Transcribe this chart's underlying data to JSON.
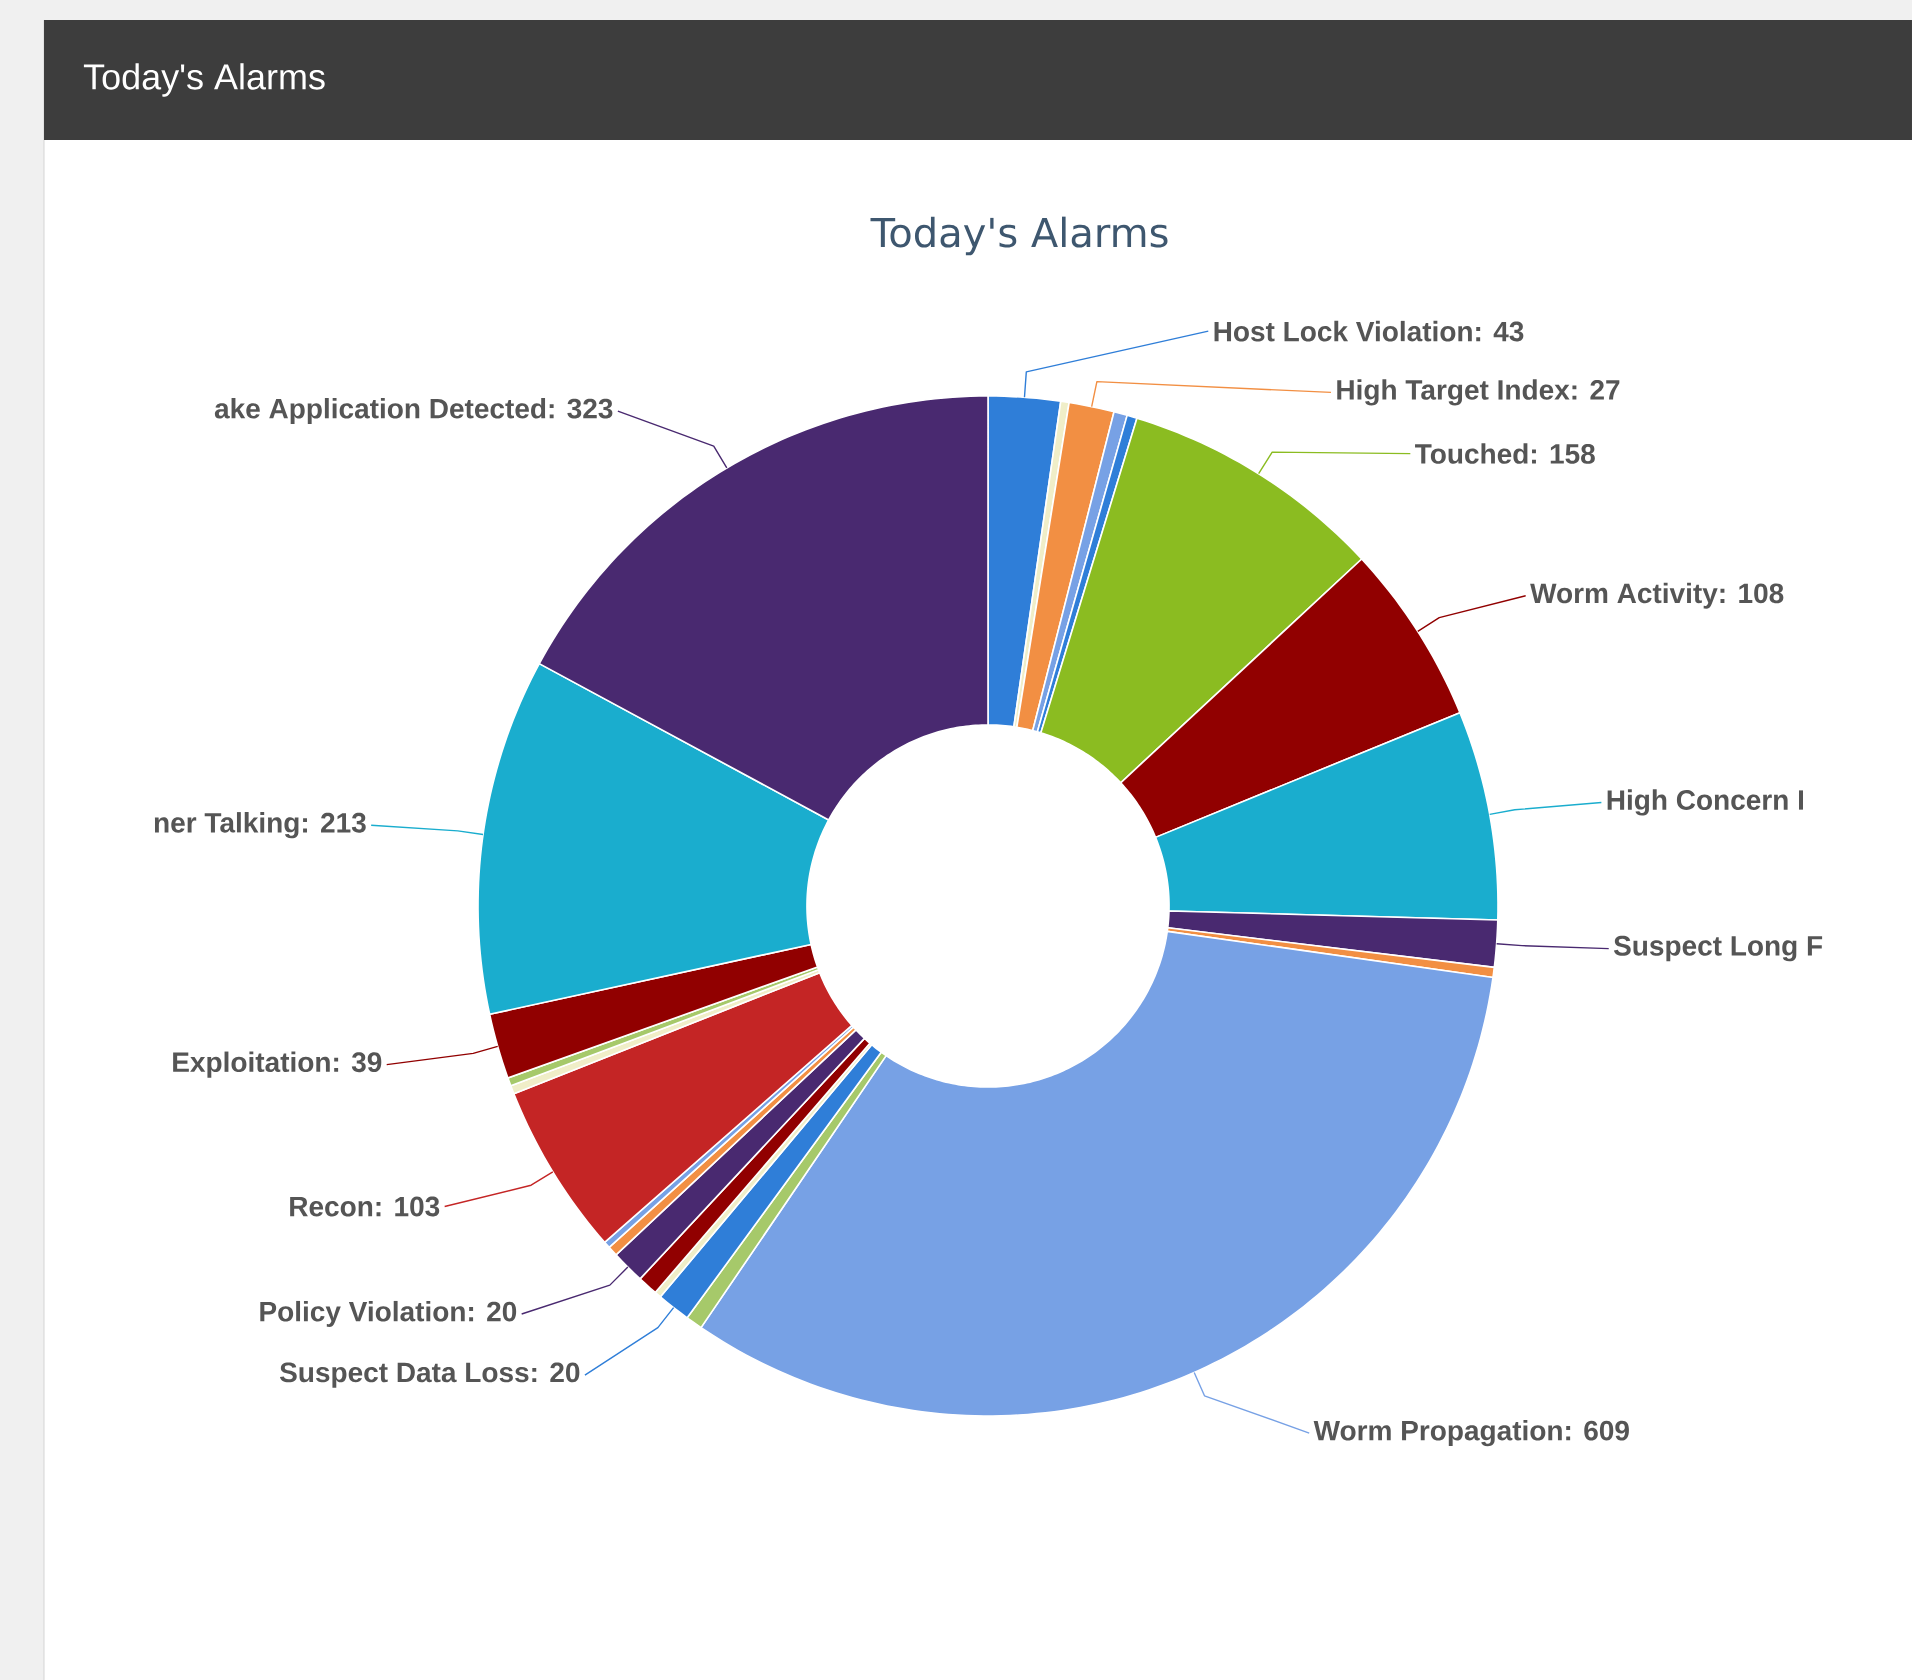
{
  "chart_data": {
    "type": "donut",
    "title": "Today's Alarms",
    "annotations": [
      "Today's Alarms"
    ],
    "categories": [
      "Host Lock Violation: 43",
      null,
      "High Target Index: 27",
      null,
      null,
      "Touched: 158",
      "Worm Activity: 108",
      "High Concern I",
      "Suspect Long F",
      null,
      "Worm Propagation: 609",
      null,
      "Suspect Data Loss: 20",
      null,
      null,
      "Policy Violation: 20",
      null,
      null,
      "Recon: 103",
      null,
      null,
      "Exploitation: 39",
      "ner Talking: 213",
      "ake Application Detected: 323"
    ],
    "values": [
      43,
      5,
      27,
      8,
      6,
      158,
      108,
      125,
      28,
      6,
      609,
      10,
      20,
      4,
      12,
      20,
      6,
      4,
      103,
      5,
      5,
      39,
      213,
      323
    ],
    "colors": [
      "#2f7ed8",
      "#f0eec8",
      "#f28f43",
      "#77a1e5",
      "#2f7ed8",
      "#8bbc21",
      "#910000",
      "#1aadce",
      "#492970",
      "#f28f43",
      "#77a1e5",
      "#a6c96a",
      "#2f7ed8",
      "#f0eec8",
      "#910000",
      "#492970",
      "#f28f43",
      "#77a1e5",
      "#c42525",
      "#f0eec8",
      "#a6c96a",
      "#910000",
      "#1aadce",
      "#492970"
    ]
  }
}
